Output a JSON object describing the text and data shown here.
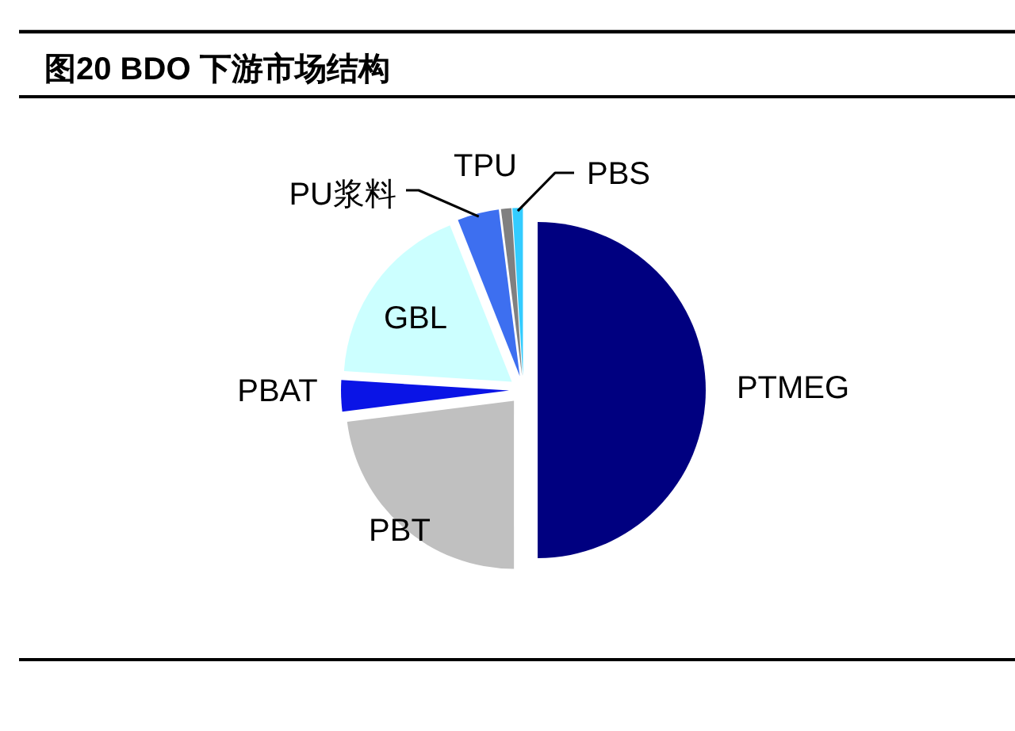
{
  "chart_data": {
    "type": "pie",
    "title": "图20 BDO 下游市场结构",
    "categories": [
      "PTMEG",
      "PBT",
      "PBAT",
      "GBL",
      "PU浆料",
      "TPU",
      "PBS"
    ],
    "values": [
      50,
      23,
      3,
      18,
      4,
      1,
      1
    ],
    "colors": [
      "#000080",
      "#c0c0c0",
      "#0a14e6",
      "#ccffff",
      "#3d6ff0",
      "#808080",
      "#33ccff"
    ]
  }
}
